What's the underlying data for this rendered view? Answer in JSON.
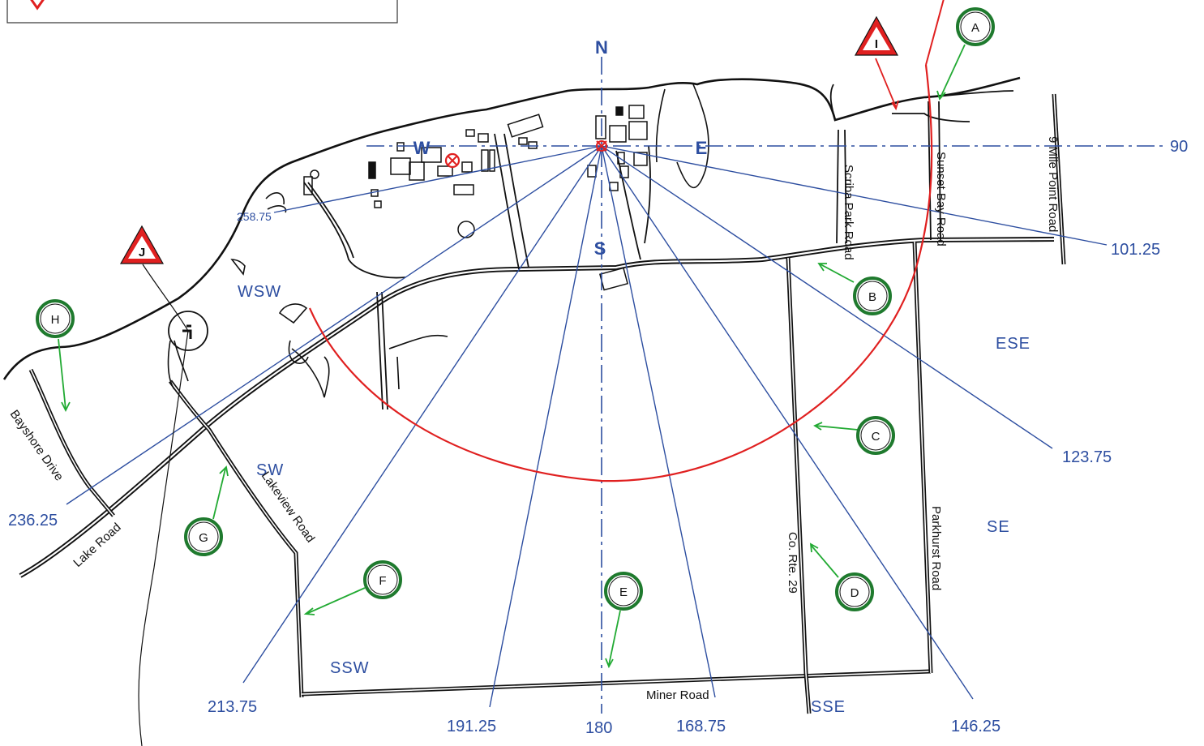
{
  "colors": {
    "sector_line": "#2d4ea0",
    "boundary_arc": "#e02020",
    "pointer_arrow": "#22aa33",
    "marker_ring": "#1f7a2e",
    "triangle": "#e02020",
    "road": "#111111"
  },
  "compass": {
    "north": "N",
    "south": "S",
    "east": "E",
    "west": "W"
  },
  "bearings": {
    "b90": "90",
    "b101": "101.25",
    "b123": "123.75",
    "b146": "146.25",
    "b168": "168.75",
    "b180": "180",
    "b191": "191.25",
    "b213": "213.75",
    "b236": "236.25",
    "b258": "258.75"
  },
  "sectors": {
    "ese": "ESE",
    "se": "SE",
    "sse": "SSE",
    "ssw": "SSW",
    "sw": "SW",
    "wsw": "WSW"
  },
  "roads": {
    "bayshore": "Bayshore Drive",
    "lake": "Lake Road",
    "lakeview": "Lakeview Road",
    "miner": "Miner Road",
    "co_rte": "Co. Rte. 29",
    "parkhurst": "Parkhurst Road",
    "scriba": "Scriba Park Road",
    "sunset": "Sunset Bay Road",
    "nine_mile": "9 Mile Point Road"
  },
  "markers": {
    "A": "A",
    "B": "B",
    "C": "C",
    "D": "D",
    "E": "E",
    "F": "F",
    "G": "G",
    "H": "H"
  },
  "triangles": {
    "I": "I",
    "J": "J"
  },
  "icons": {
    "plant_center": "crosshair-icon",
    "stack": "circle-x-icon",
    "warning": "warning-triangle-icon"
  }
}
